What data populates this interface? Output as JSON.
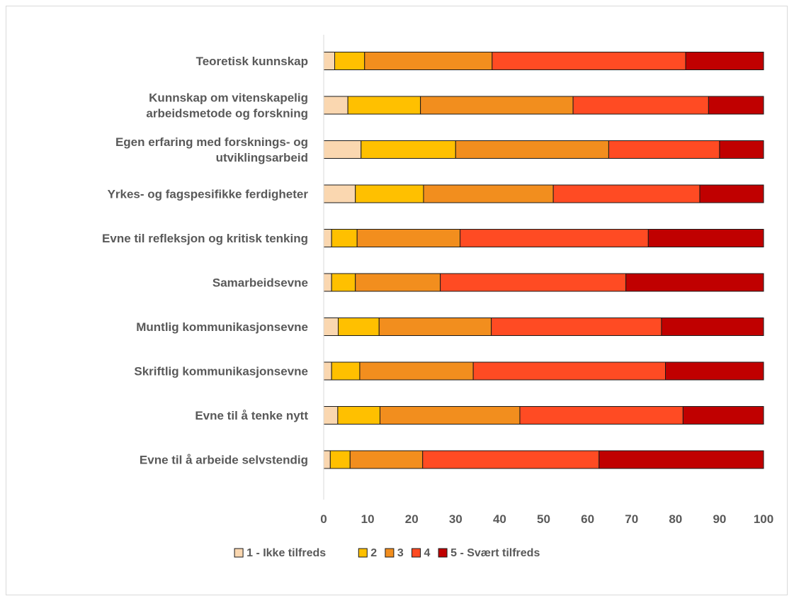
{
  "chart_data": {
    "type": "bar",
    "orientation": "horizontal",
    "stacked": true,
    "categories": [
      "Teoretisk kunnskap",
      "Kunnskap om vitenskapelig arbeidsmetode og forskning",
      "Egen erfaring med forsknings- og utviklingsarbeid",
      "Yrkes- og fagspesifikke ferdigheter",
      "Evne til refleksjon og kritisk tenking",
      "Samarbeidsevne",
      "Muntlig kommunikasjonsevne",
      "Skriftlig kommunikasjonsevne",
      "Evne til å tenke nytt",
      "Evne til å arbeide selvstendig"
    ],
    "category_lines": [
      [
        "Teoretisk kunnskap"
      ],
      [
        "Kunnskap om vitenskapelig",
        "arbeidsmetode og forskning"
      ],
      [
        "Egen erfaring med forsknings- og",
        "utviklingsarbeid"
      ],
      [
        "Yrkes- og fagspesifikke ferdigheter"
      ],
      [
        "Evne til refleksjon og kritisk tenking"
      ],
      [
        "Samarbeidsevne"
      ],
      [
        "Muntlig kommunikasjonsevne"
      ],
      [
        "Skriftlig kommunikasjonsevne"
      ],
      [
        "Evne til å tenke nytt"
      ],
      [
        "Evne til å arbeide selvstendig"
      ]
    ],
    "series": [
      {
        "name": "1 - Ikke tilfreds",
        "color": "#fad7b0",
        "values": [
          2.5,
          5.5,
          8.5,
          7.2,
          1.8,
          1.8,
          3.3,
          1.8,
          3.2,
          1.5
        ]
      },
      {
        "name": "2",
        "color": "#ffc000",
        "values": [
          6.8,
          16.5,
          21.5,
          15.5,
          5.8,
          5.4,
          9.3,
          6.4,
          9.6,
          4.5
        ]
      },
      {
        "name": "3",
        "color": "#f28e1e",
        "values": [
          29.0,
          34.7,
          34.8,
          29.5,
          23.4,
          19.3,
          25.5,
          25.8,
          31.8,
          16.5
        ]
      },
      {
        "name": "4",
        "color": "#ff4b23",
        "values": [
          44.0,
          30.8,
          25.2,
          33.3,
          42.8,
          42.2,
          38.7,
          43.7,
          37.1,
          40.1
        ]
      },
      {
        "name": "5 - Svært tilfreds",
        "color": "#c00000",
        "values": [
          17.7,
          12.5,
          10.0,
          14.5,
          26.2,
          31.3,
          23.2,
          22.3,
          18.3,
          37.4
        ]
      }
    ],
    "xlim": [
      0,
      100
    ],
    "xticks": [
      0,
      10,
      20,
      30,
      40,
      50,
      60,
      70,
      80,
      90,
      100
    ],
    "grid": false,
    "legend": "bottom",
    "title": "",
    "xlabel": "",
    "ylabel": ""
  }
}
